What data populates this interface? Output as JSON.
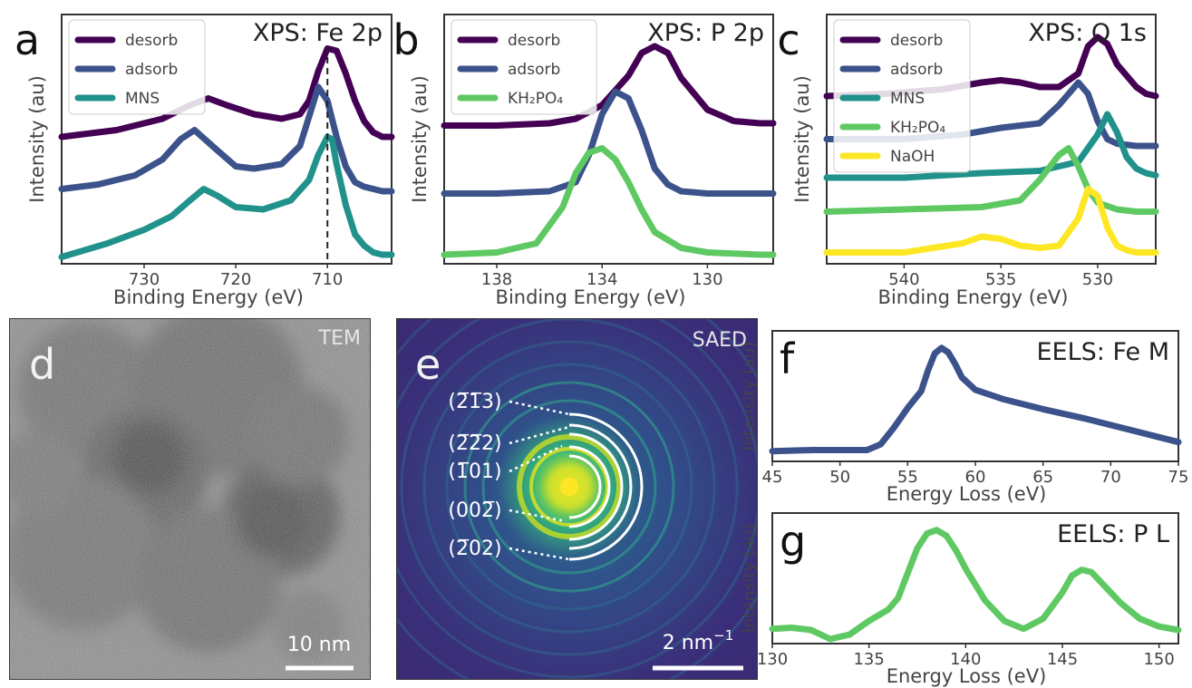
{
  "colors": {
    "desorb": "#440154",
    "adsorb": "#3b528b",
    "MNS": "#21918c",
    "KH2PO4": "#5ec962",
    "NaOH": "#fde725",
    "eels_fe": "#3b528b",
    "eels_p": "#5ec962"
  },
  "chart_data": [
    {
      "panel": "a",
      "type": "line",
      "title": "XPS: Fe 2p",
      "xlabel": "Binding Energy (eV)",
      "ylabel": "Intensity (au)",
      "xlim": [
        739,
        703
      ],
      "x_reversed": true,
      "xticks": [
        "730",
        "720",
        "710"
      ],
      "ylim": [
        0,
        1.1
      ],
      "legend": "top-left",
      "vline": 710,
      "series": [
        {
          "name": "desorb",
          "color_key": "desorb",
          "x": [
            739,
            733,
            728,
            725,
            723,
            721,
            718,
            715,
            713,
            712,
            711,
            710,
            709,
            708,
            707,
            706,
            705,
            704,
            703
          ],
          "y": [
            0.56,
            0.59,
            0.64,
            0.7,
            0.73,
            0.7,
            0.66,
            0.64,
            0.66,
            0.72,
            0.85,
            0.95,
            0.94,
            0.84,
            0.72,
            0.63,
            0.58,
            0.56,
            0.56
          ]
        },
        {
          "name": "adsorb",
          "color_key": "adsorb",
          "x": [
            739,
            735,
            731,
            728,
            726,
            724.5,
            722,
            720,
            718,
            715,
            713,
            712,
            711,
            710,
            709,
            708,
            707,
            706,
            705,
            704,
            703
          ],
          "y": [
            0.33,
            0.35,
            0.39,
            0.46,
            0.55,
            0.59,
            0.5,
            0.43,
            0.42,
            0.44,
            0.52,
            0.65,
            0.78,
            0.72,
            0.56,
            0.43,
            0.36,
            0.34,
            0.33,
            0.32,
            0.32
          ]
        },
        {
          "name": "MNS",
          "color_key": "MNS",
          "x": [
            739,
            734,
            730,
            727,
            725,
            723.5,
            722,
            720,
            717,
            714,
            712,
            711,
            710,
            709.5,
            709,
            708,
            707,
            706,
            705,
            704,
            703
          ],
          "y": [
            0.03,
            0.09,
            0.15,
            0.21,
            0.28,
            0.33,
            0.3,
            0.25,
            0.24,
            0.28,
            0.37,
            0.48,
            0.56,
            0.55,
            0.44,
            0.26,
            0.13,
            0.08,
            0.05,
            0.04,
            0.04
          ]
        }
      ]
    },
    {
      "panel": "b",
      "type": "line",
      "title": "XPS: P 2p",
      "xlabel": "Binding Energy (eV)",
      "ylabel": "Intensity (au)",
      "xlim": [
        140,
        127.5
      ],
      "x_reversed": true,
      "xticks": [
        "138",
        "134",
        "130"
      ],
      "ylim": [
        0,
        1.1
      ],
      "legend": "top-left",
      "series": [
        {
          "name": "desorb",
          "color_key": "desorb",
          "x": [
            140,
            138,
            136,
            135,
            134,
            133,
            132.5,
            132,
            131.5,
            131,
            130,
            129,
            128,
            127.5
          ],
          "y": [
            0.61,
            0.61,
            0.62,
            0.64,
            0.7,
            0.83,
            0.93,
            0.96,
            0.93,
            0.82,
            0.68,
            0.63,
            0.62,
            0.62
          ]
        },
        {
          "name": "adsorb",
          "color_key": "adsorb",
          "x": [
            140,
            138,
            136,
            135,
            134.5,
            134,
            133.5,
            133,
            132.5,
            132,
            131.5,
            131,
            130,
            128,
            127.5
          ],
          "y": [
            0.31,
            0.31,
            0.32,
            0.36,
            0.48,
            0.66,
            0.76,
            0.73,
            0.59,
            0.42,
            0.35,
            0.32,
            0.31,
            0.31,
            0.31
          ]
        },
        {
          "name": "KH₂PO₄",
          "color_key": "KH2PO4",
          "x": [
            140,
            138,
            136.5,
            135.5,
            135,
            134.5,
            134,
            133.5,
            133,
            132.5,
            132,
            131,
            130,
            128,
            127.5
          ],
          "y": [
            0.04,
            0.05,
            0.09,
            0.25,
            0.4,
            0.49,
            0.51,
            0.46,
            0.36,
            0.24,
            0.14,
            0.07,
            0.05,
            0.04,
            0.04
          ]
        }
      ]
    },
    {
      "panel": "c",
      "type": "line",
      "title": "XPS: O 1s",
      "xlabel": "Binding Energy (eV)",
      "ylabel": "Intensity (au)",
      "xlim": [
        544,
        527
      ],
      "x_reversed": true,
      "xticks": [
        "540",
        "535",
        "530"
      ],
      "ylim": [
        0,
        1.1
      ],
      "legend": "top-left",
      "series": [
        {
          "name": "desorb",
          "color_key": "desorb",
          "x": [
            544,
            541,
            538,
            536,
            535,
            534,
            533,
            532,
            531,
            530.5,
            530,
            529.5,
            529,
            528,
            527.5,
            527
          ],
          "y": [
            0.74,
            0.75,
            0.77,
            0.8,
            0.81,
            0.8,
            0.78,
            0.78,
            0.84,
            0.96,
            1.0,
            0.97,
            0.88,
            0.78,
            0.75,
            0.74
          ]
        },
        {
          "name": "adsorb",
          "color_key": "adsorb",
          "x": [
            544,
            540,
            537,
            535,
            533,
            532,
            531,
            530.5,
            530,
            529.5,
            529,
            528,
            527
          ],
          "y": [
            0.55,
            0.55,
            0.57,
            0.6,
            0.62,
            0.7,
            0.8,
            0.75,
            0.63,
            0.55,
            0.53,
            0.52,
            0.52
          ]
        },
        {
          "name": "MNS",
          "color_key": "MNS",
          "x": [
            544,
            540,
            536,
            533,
            531,
            530,
            529.5,
            529,
            528.5,
            528,
            527.5,
            527
          ],
          "y": [
            0.38,
            0.38,
            0.4,
            0.41,
            0.45,
            0.57,
            0.66,
            0.58,
            0.47,
            0.42,
            0.4,
            0.39
          ]
        },
        {
          "name": "KH₂PO₄",
          "color_key": "KH2PO4",
          "x": [
            544,
            540,
            536,
            534,
            533,
            532,
            531.5,
            531,
            530.5,
            530,
            529,
            528,
            527
          ],
          "y": [
            0.23,
            0.24,
            0.25,
            0.28,
            0.37,
            0.48,
            0.51,
            0.43,
            0.33,
            0.27,
            0.24,
            0.23,
            0.23
          ]
        },
        {
          "name": "NaOH",
          "color_key": "NaOH",
          "x": [
            544,
            540,
            537,
            536,
            535,
            534,
            533,
            532,
            531,
            530.5,
            530,
            529.5,
            529,
            528.5,
            528,
            527
          ],
          "y": [
            0.05,
            0.05,
            0.09,
            0.12,
            0.11,
            0.08,
            0.07,
            0.08,
            0.2,
            0.33,
            0.3,
            0.16,
            0.08,
            0.06,
            0.05,
            0.05
          ]
        }
      ]
    },
    {
      "panel": "f",
      "type": "line",
      "title": "EELS: Fe M",
      "xlabel": "Energy Loss (eV)",
      "ylabel": "Intensity (au)",
      "xlim": [
        45,
        75
      ],
      "xticks": [
        "45",
        "50",
        "55",
        "60",
        "65",
        "70",
        "75"
      ],
      "ylim": [
        0,
        1.15
      ],
      "series": [
        {
          "color_key": "eels_fe",
          "x": [
            45,
            48,
            50,
            52,
            53,
            54,
            55,
            56,
            56.5,
            57,
            57.5,
            58,
            58.5,
            59,
            60,
            62,
            65,
            68,
            70,
            72,
            75
          ],
          "y": [
            0.09,
            0.1,
            0.1,
            0.1,
            0.15,
            0.3,
            0.47,
            0.62,
            0.8,
            0.95,
            1.0,
            0.96,
            0.86,
            0.74,
            0.63,
            0.55,
            0.46,
            0.38,
            0.32,
            0.26,
            0.17
          ]
        }
      ]
    },
    {
      "panel": "g",
      "type": "line",
      "title": "EELS: P L",
      "xlabel": "Energy Loss (eV)",
      "ylabel": "Intensity (au)",
      "xlim": [
        130,
        151
      ],
      "xticks": [
        "130",
        "135",
        "140",
        "145",
        "150"
      ],
      "ylim": [
        0,
        1.15
      ],
      "series": [
        {
          "color_key": "eels_p",
          "x": [
            130,
            131,
            132,
            133,
            134,
            135,
            136,
            136.5,
            137,
            137.5,
            138,
            138.5,
            139,
            139.5,
            140,
            141,
            142,
            143,
            144,
            145,
            145.5,
            146,
            146.5,
            147,
            148,
            149,
            150,
            151
          ],
          "y": [
            0.13,
            0.14,
            0.12,
            0.04,
            0.08,
            0.2,
            0.3,
            0.4,
            0.62,
            0.84,
            0.97,
            1.0,
            0.95,
            0.82,
            0.66,
            0.38,
            0.2,
            0.13,
            0.22,
            0.45,
            0.6,
            0.65,
            0.63,
            0.54,
            0.36,
            0.22,
            0.15,
            0.12
          ]
        }
      ]
    }
  ],
  "images": {
    "tem": {
      "panel": "d",
      "title": "TEM",
      "scale": "10 nm"
    },
    "saed": {
      "panel": "e",
      "title": "SAED",
      "scale": "2 nm",
      "scale_exp": "−1",
      "ring_labels": [
        "(2̅1̅3)",
        "(2̅2̅2)",
        "(1̅01)",
        "(002̅)",
        "(2̅02)"
      ]
    }
  }
}
